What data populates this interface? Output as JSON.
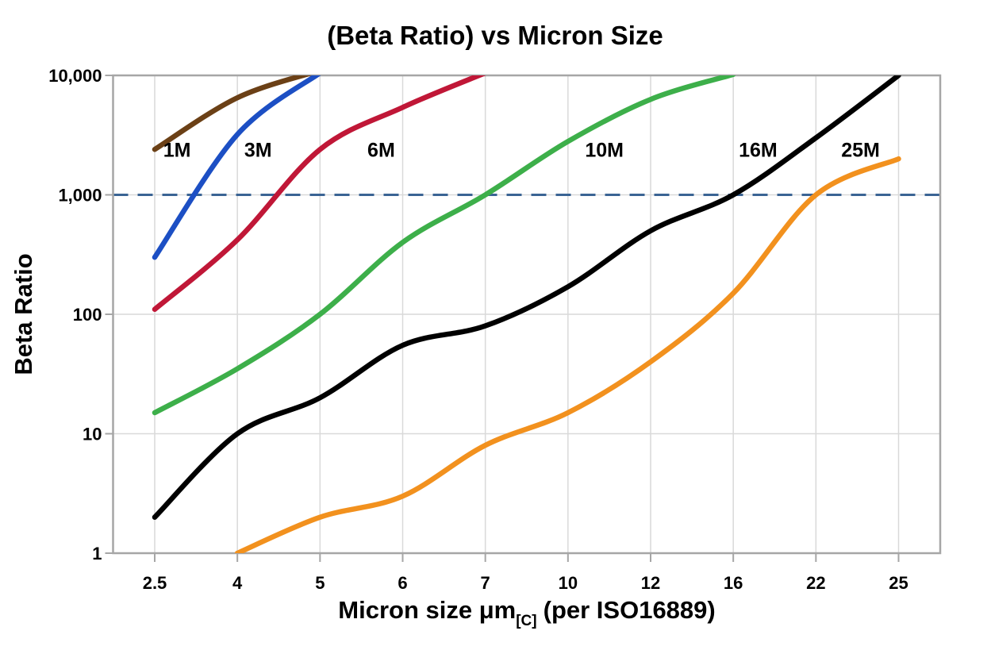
{
  "page": {
    "background": "#ffffff"
  },
  "chart_data": {
    "type": "line",
    "title": "(Beta Ratio) vs Micron Size",
    "ylabel": "Beta Ratio",
    "xlabel_parts": {
      "pre": "Micron size μm",
      "sub": "[C]",
      "post": "(per ISO16889)"
    },
    "x_categories": [
      "2.5",
      "4",
      "5",
      "6",
      "7",
      "10",
      "12",
      "16",
      "22",
      "25"
    ],
    "y_scale": "log",
    "ylim": [
      1,
      10000
    ],
    "y_ticks": [
      {
        "value": 1,
        "label": "1"
      },
      {
        "value": 10,
        "label": "10"
      },
      {
        "value": 100,
        "label": "100"
      },
      {
        "value": 1000,
        "label": "1,000"
      },
      {
        "value": 10000,
        "label": "10,000"
      }
    ],
    "grid": true,
    "legend_position": "inline-labels",
    "reference_line": {
      "value": 1000,
      "style": "dashed",
      "color": "#3a6494"
    },
    "clip_note": "values above 10000 run off the top of the plot",
    "series": [
      {
        "name": "1M",
        "color": "#6b4016",
        "values": [
          2400,
          6500,
          11000,
          null,
          null,
          null,
          null,
          null,
          null,
          null
        ],
        "label": {
          "text": "1M",
          "x_index": 0.27,
          "at_value": 2400
        }
      },
      {
        "name": "3M",
        "color": "#1c4fc4",
        "values": [
          300,
          3200,
          10500,
          null,
          null,
          null,
          null,
          null,
          null,
          null
        ],
        "label": {
          "text": "3M",
          "x_index": 1.25,
          "at_value": 2400
        }
      },
      {
        "name": "6M",
        "color": "#c01737",
        "values": [
          110,
          420,
          2400,
          5400,
          10500,
          null,
          null,
          null,
          null,
          null
        ],
        "label": {
          "text": "6M",
          "x_index": 2.74,
          "at_value": 2400
        }
      },
      {
        "name": "10M",
        "color": "#3daf4a",
        "values": [
          15,
          35,
          100,
          400,
          1000,
          2800,
          6300,
          10200,
          null,
          null
        ],
        "label": {
          "text": "10M",
          "x_index": 5.44,
          "at_value": 2400
        }
      },
      {
        "name": "16M",
        "color": "#000000",
        "values": [
          2,
          10,
          20,
          55,
          80,
          170,
          500,
          1000,
          3000,
          10000
        ],
        "label": {
          "text": "16M",
          "x_index": 7.3,
          "at_value": 2400
        }
      },
      {
        "name": "25M",
        "color": "#f2911e",
        "values": [
          null,
          1,
          2,
          3,
          8,
          15,
          40,
          150,
          1000,
          2000
        ],
        "label": {
          "text": "25M",
          "x_index": 8.54,
          "at_value": 2400
        }
      }
    ]
  },
  "style": {
    "frame_color": "#a6a6a6",
    "grid_color": "#d9d9d9",
    "tick_color": "#a6a6a6",
    "text_color": "#000000",
    "series_stroke_width": 6.5
  }
}
